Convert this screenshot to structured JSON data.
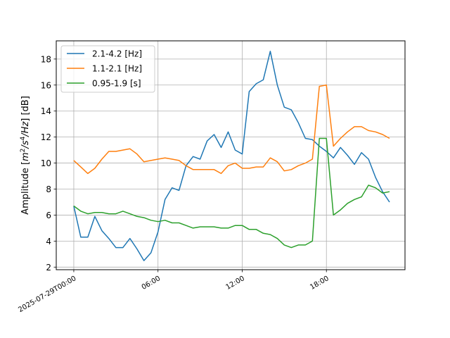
{
  "chart_data": {
    "type": "line",
    "ylabel": "Amplitude [$m^2/s^4/Hz$] [dB]",
    "ylim": [
      1.8,
      19.4
    ],
    "xlim_hours": [
      -1.25,
      23.6
    ],
    "yticks": [
      2,
      4,
      6,
      8,
      10,
      12,
      14,
      16,
      18
    ],
    "xticks": [
      {
        "hour": 0,
        "label": "2025-07-29T00:00"
      },
      {
        "hour": 6,
        "label": "06:00"
      },
      {
        "hour": 12,
        "label": "12:00"
      },
      {
        "hour": 18,
        "label": "18:00"
      }
    ],
    "grid": true,
    "legend_position": "upper-left",
    "x_hours": [
      0,
      0.5,
      1,
      1.5,
      2,
      2.5,
      3,
      3.5,
      4,
      4.5,
      5,
      5.5,
      6,
      6.5,
      7,
      7.5,
      8,
      8.5,
      9,
      9.5,
      10,
      10.5,
      11,
      11.5,
      12,
      12.5,
      13,
      13.5,
      14,
      14.5,
      15,
      15.5,
      16,
      16.5,
      17,
      17.5,
      18,
      18.5,
      19,
      19.5,
      20,
      20.5,
      21,
      21.5,
      22,
      22.5
    ],
    "series": [
      {
        "name": "2.1-4.2 [Hz]",
        "color": "#1f77b4",
        "values": [
          6.7,
          4.3,
          4.3,
          5.9,
          4.8,
          4.2,
          3.5,
          3.5,
          4.2,
          3.4,
          2.5,
          3.1,
          4.7,
          7.2,
          8.1,
          7.9,
          9.8,
          10.5,
          10.3,
          11.7,
          12.2,
          11.2,
          12.4,
          11.0,
          10.7,
          15.5,
          16.1,
          16.4,
          18.6,
          16.0,
          14.3,
          14.1,
          13.1,
          11.9,
          11.8,
          11.3,
          10.9,
          10.4,
          11.2,
          10.6,
          9.9,
          10.8,
          10.3,
          8.9,
          7.8,
          7.0
        ]
      },
      {
        "name": "1.1-2.1 [Hz]",
        "color": "#ff7f0e",
        "values": [
          10.2,
          9.7,
          9.2,
          9.6,
          10.3,
          10.9,
          10.9,
          11.0,
          11.1,
          10.7,
          10.1,
          10.2,
          10.3,
          10.4,
          10.3,
          10.2,
          9.8,
          9.5,
          9.5,
          9.5,
          9.5,
          9.2,
          9.8,
          10.0,
          9.6,
          9.6,
          9.7,
          9.7,
          10.4,
          10.1,
          9.4,
          9.5,
          9.8,
          10.0,
          10.3,
          15.9,
          16.0,
          11.3,
          11.9,
          12.4,
          12.8,
          12.8,
          12.5,
          12.4,
          12.2,
          11.9
        ]
      },
      {
        "name": "0.95-1.9 [s]",
        "color": "#2ca02c",
        "values": [
          6.7,
          6.3,
          6.1,
          6.2,
          6.2,
          6.1,
          6.1,
          6.3,
          6.1,
          5.9,
          5.8,
          5.6,
          5.5,
          5.6,
          5.4,
          5.4,
          5.2,
          5.0,
          5.1,
          5.1,
          5.1,
          5.0,
          5.0,
          5.2,
          5.2,
          4.9,
          4.9,
          4.6,
          4.5,
          4.2,
          3.7,
          3.5,
          3.7,
          3.7,
          4.0,
          11.9,
          11.9,
          6.0,
          6.4,
          6.9,
          7.2,
          7.4,
          8.3,
          8.1,
          7.7,
          7.8
        ]
      }
    ]
  }
}
